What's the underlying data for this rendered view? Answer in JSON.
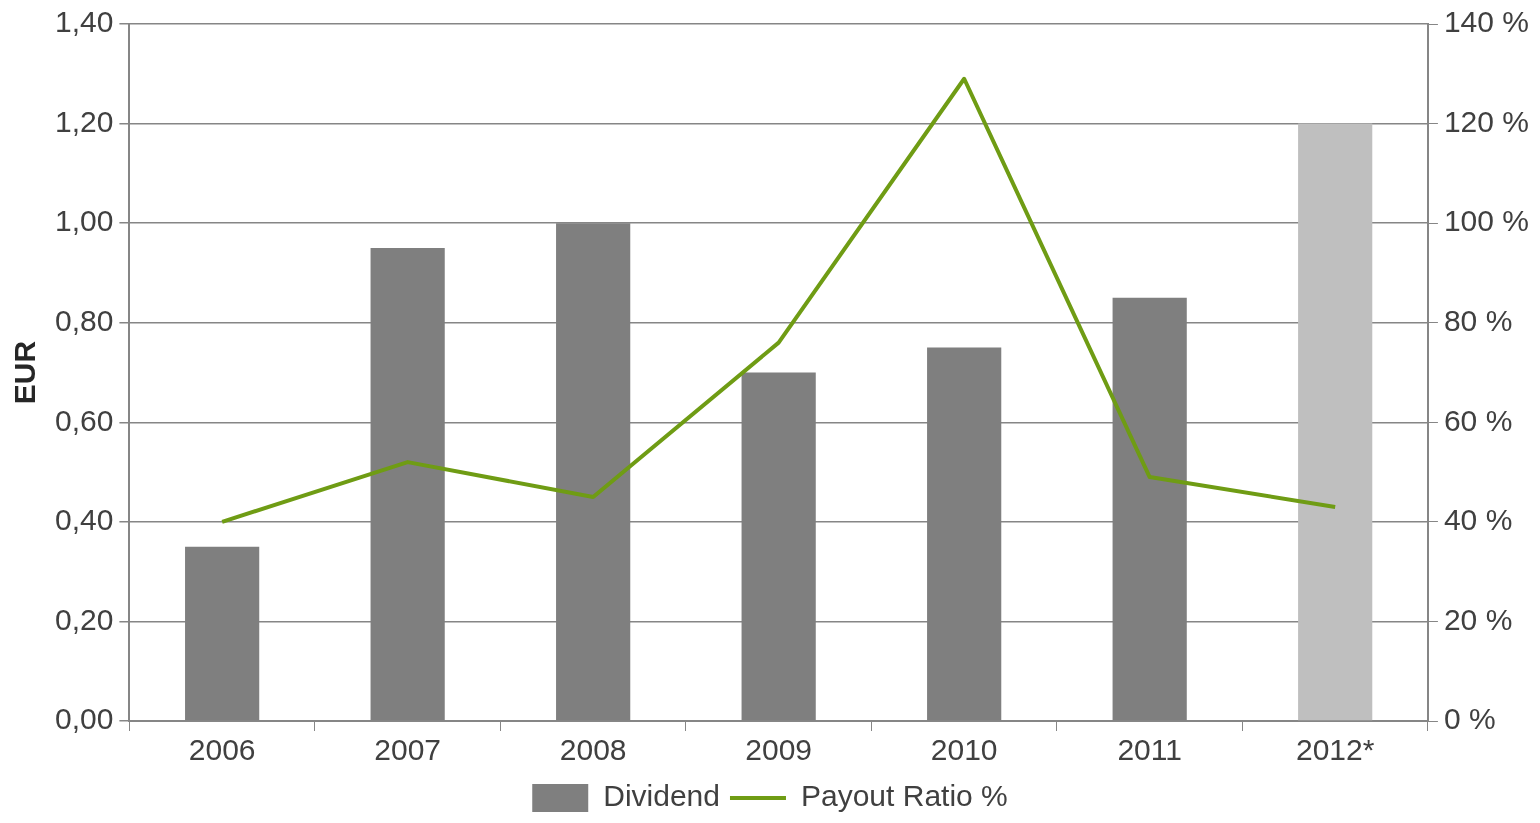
{
  "chart_data": {
    "type": "bar",
    "ylabel": "EUR",
    "categories": [
      "2006",
      "2007",
      "2008",
      "2009",
      "2010",
      "2011",
      "2012*"
    ],
    "series": [
      {
        "name": "Dividend",
        "colors": [
          "#7f7f7f",
          "#7f7f7f",
          "#7f7f7f",
          "#7f7f7f",
          "#7f7f7f",
          "#7f7f7f",
          "#bfbfbf"
        ],
        "values": [
          0.35,
          0.95,
          1.0,
          0.7,
          0.75,
          0.85,
          1.2
        ]
      },
      {
        "name": "Payout Ratio %",
        "type": "line",
        "axis": "y2",
        "color": "#6f9c14",
        "values": [
          40,
          52,
          45,
          76,
          129,
          49,
          43
        ]
      }
    ],
    "ylim": [
      0,
      1.4
    ],
    "yticks": [
      {
        "value": 0,
        "label": "0,00"
      },
      {
        "value": 0.2,
        "label": "0,20"
      },
      {
        "value": 0.4,
        "label": "0,40"
      },
      {
        "value": 0.6,
        "label": "0,60"
      },
      {
        "value": 0.8,
        "label": "0,80"
      },
      {
        "value": 1,
        "label": "1,00"
      },
      {
        "value": 1.2,
        "label": "1,20"
      },
      {
        "value": 1.4,
        "label": "1,40"
      }
    ],
    "y2lim": [
      0,
      140
    ],
    "y2ticks": [
      {
        "value": 0,
        "label": "0 %"
      },
      {
        "value": 20,
        "label": "20 %"
      },
      {
        "value": 40,
        "label": "40 %"
      },
      {
        "value": 60,
        "label": "60 %"
      },
      {
        "value": 80,
        "label": "80 %"
      },
      {
        "value": 100,
        "label": "100 %"
      },
      {
        "value": 120,
        "label": "120 %"
      },
      {
        "value": 140,
        "label": "140 %"
      }
    ],
    "grid": "y",
    "legend": "bottom",
    "marker": "none",
    "line_style": "solid"
  }
}
